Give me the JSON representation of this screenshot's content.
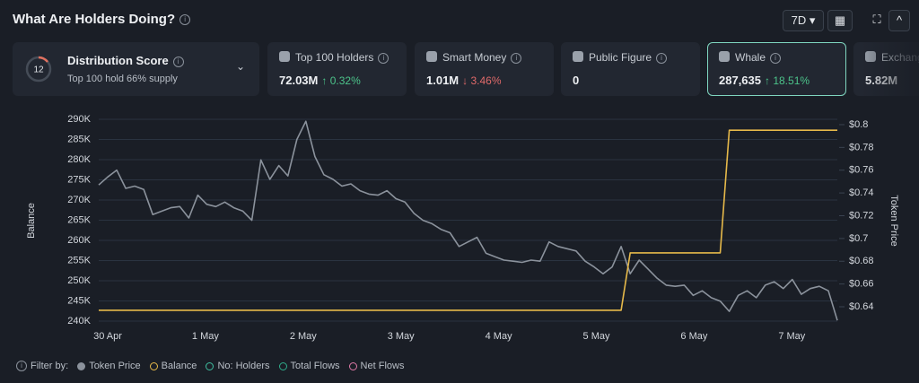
{
  "header": {
    "title": "What Are Holders Doing?",
    "period": "7D"
  },
  "score_card": {
    "score": 12,
    "title": "Distribution Score",
    "subtitle": "Top 100 hold 66% supply"
  },
  "cards": [
    {
      "title": "Top 100 Holders",
      "value": "72.03M",
      "change": "↑ 0.32%",
      "trend": "up"
    },
    {
      "title": "Smart Money",
      "value": "1.01M",
      "change": "↓ 3.46%",
      "trend": "down"
    },
    {
      "title": "Public Figure",
      "value": "0"
    },
    {
      "title": "Whale",
      "value": "287,635",
      "change": "↑ 18.51%",
      "trend": "up"
    },
    {
      "title": "Exchange",
      "value": "5.82M"
    }
  ],
  "filter_label": "Filter by:",
  "other_filters": [
    {
      "name": "No: Holders",
      "color": "#3fbfa0"
    },
    {
      "name": "Total Flows",
      "color": "#2fae8c"
    },
    {
      "name": "Net Flows",
      "color": "#e07aa8"
    }
  ],
  "chart_data": {
    "type": "line",
    "ylabel": "Balance",
    "y2label": "Token Price",
    "xticks": [
      "30 Apr",
      "1 May",
      "2 May",
      "3 May",
      "4 May",
      "5 May",
      "6 May",
      "7 May"
    ],
    "ylim": [
      240000,
      290000
    ],
    "yticks": [
      {
        "value": 240000,
        "label": "240K"
      },
      {
        "value": 245000,
        "label": "245K"
      },
      {
        "value": 250000,
        "label": "250K"
      },
      {
        "value": 255000,
        "label": "255K"
      },
      {
        "value": 260000,
        "label": "260K"
      },
      {
        "value": 265000,
        "label": "265K"
      },
      {
        "value": 270000,
        "label": "270K"
      },
      {
        "value": 275000,
        "label": "275K"
      },
      {
        "value": 280000,
        "label": "280K"
      },
      {
        "value": 285000,
        "label": "285K"
      },
      {
        "value": 290000,
        "label": "290K"
      }
    ],
    "y2lim": [
      0.6274,
      0.8047
    ],
    "y2ticks": [
      {
        "value": 0.64,
        "label": "$0.64"
      },
      {
        "value": 0.66,
        "label": "$0.66"
      },
      {
        "value": 0.68,
        "label": "$0.68"
      },
      {
        "value": 0.7,
        "label": "$0.7"
      },
      {
        "value": 0.72,
        "label": "$0.72"
      },
      {
        "value": 0.74,
        "label": "$0.74"
      },
      {
        "value": 0.76,
        "label": "$0.76"
      },
      {
        "value": 0.78,
        "label": "$0.78"
      },
      {
        "value": 0.8,
        "label": "$0.8"
      }
    ],
    "grid": true,
    "series": [
      {
        "name": "Token Price",
        "color": "#8b929c",
        "axis": "y2",
        "values": [
          0.747,
          0.754,
          0.76,
          0.744,
          0.746,
          0.743,
          0.721,
          0.724,
          0.727,
          0.728,
          0.718,
          0.738,
          0.73,
          0.728,
          0.732,
          0.727,
          0.724,
          0.716,
          0.769,
          0.752,
          0.764,
          0.755,
          0.787,
          0.803,
          0.772,
          0.756,
          0.752,
          0.746,
          0.748,
          0.742,
          0.739,
          0.738,
          0.742,
          0.735,
          0.732,
          0.722,
          0.716,
          0.713,
          0.708,
          0.705,
          0.693,
          0.697,
          0.701,
          0.687,
          0.684,
          0.681,
          0.68,
          0.679,
          0.681,
          0.68,
          0.697,
          0.693,
          0.691,
          0.689,
          0.68,
          0.675,
          0.669,
          0.675,
          0.693,
          0.669,
          0.681,
          0.673,
          0.665,
          0.659,
          0.658,
          0.659,
          0.65,
          0.654,
          0.648,
          0.645,
          0.636,
          0.65,
          0.654,
          0.648,
          0.659,
          0.662,
          0.656,
          0.664,
          0.651,
          0.656,
          0.658,
          0.654,
          0.628
        ]
      },
      {
        "name": "Balance",
        "color": "#e6b94a",
        "values": [
          242700,
          242700,
          242700,
          242700,
          242700,
          242700,
          242700,
          242700,
          242700,
          242700,
          242700,
          242700,
          242700,
          242700,
          242700,
          242700,
          242700,
          242700,
          242700,
          242700,
          242700,
          242700,
          242700,
          242700,
          242700,
          242700,
          242700,
          242700,
          242700,
          242700,
          242700,
          242700,
          242700,
          242700,
          242700,
          242700,
          242700,
          242700,
          242700,
          242700,
          242700,
          242700,
          242700,
          242700,
          242700,
          242700,
          242700,
          242700,
          242700,
          242700,
          242700,
          242700,
          242700,
          242700,
          242700,
          242700,
          242700,
          242700,
          242700,
          256900,
          256900,
          256900,
          256900,
          256900,
          256900,
          256900,
          256900,
          256900,
          256900,
          256900,
          287300,
          287300,
          287300,
          287300,
          287300,
          287300,
          287300,
          287300,
          287300,
          287300,
          287300,
          287300,
          287300
        ]
      }
    ]
  }
}
